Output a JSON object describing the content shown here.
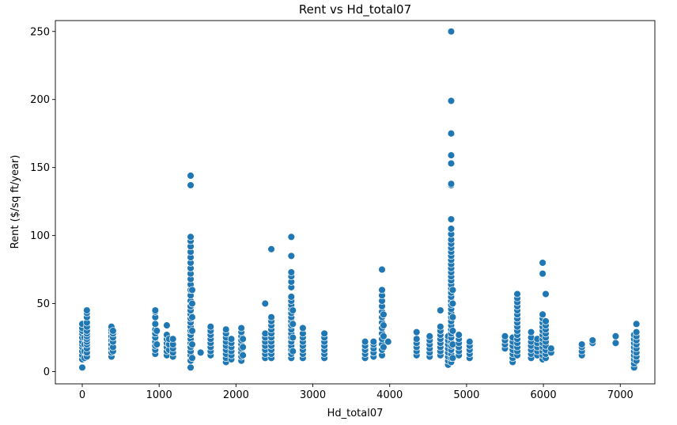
{
  "chart_data": {
    "type": "scatter",
    "title": "Rent vs Hd_total07",
    "xlabel": "Hd_total07",
    "ylabel": "Rent ($/sq ft/year)",
    "xlim": [
      -350,
      7450
    ],
    "ylim": [
      -9,
      258
    ],
    "xticks": [
      0,
      1000,
      2000,
      3000,
      4000,
      5000,
      6000,
      7000
    ],
    "yticks": [
      0,
      50,
      100,
      150,
      200,
      250
    ],
    "grid": false,
    "colors": {
      "marker": "#1f77b4",
      "marker_edge": "#ffffff"
    },
    "points": [
      [
        0,
        3
      ],
      [
        0,
        9
      ],
      [
        0,
        12
      ],
      [
        0,
        15
      ],
      [
        0,
        18
      ],
      [
        0,
        20
      ],
      [
        0,
        22
      ],
      [
        0,
        25
      ],
      [
        0,
        28
      ],
      [
        0,
        30
      ],
      [
        0,
        32
      ],
      [
        0,
        35
      ],
      [
        30,
        10
      ],
      [
        30,
        15
      ],
      [
        30,
        20
      ],
      [
        30,
        25
      ],
      [
        60,
        11
      ],
      [
        60,
        14
      ],
      [
        60,
        17
      ],
      [
        60,
        20
      ],
      [
        60,
        22
      ],
      [
        60,
        24
      ],
      [
        60,
        26
      ],
      [
        60,
        28
      ],
      [
        60,
        30
      ],
      [
        60,
        33
      ],
      [
        60,
        36
      ],
      [
        60,
        40
      ],
      [
        60,
        43
      ],
      [
        60,
        45
      ],
      [
        380,
        11
      ],
      [
        380,
        14
      ],
      [
        380,
        17
      ],
      [
        380,
        20
      ],
      [
        380,
        23
      ],
      [
        380,
        26
      ],
      [
        380,
        29
      ],
      [
        380,
        31
      ],
      [
        380,
        33
      ],
      [
        400,
        15
      ],
      [
        400,
        18
      ],
      [
        400,
        22
      ],
      [
        400,
        25
      ],
      [
        400,
        28
      ],
      [
        400,
        30
      ],
      [
        950,
        13
      ],
      [
        950,
        16
      ],
      [
        950,
        19
      ],
      [
        950,
        22
      ],
      [
        950,
        25
      ],
      [
        950,
        28
      ],
      [
        950,
        31
      ],
      [
        950,
        35
      ],
      [
        950,
        40
      ],
      [
        950,
        44
      ],
      [
        950,
        45
      ],
      [
        970,
        20
      ],
      [
        970,
        30
      ],
      [
        1100,
        12
      ],
      [
        1100,
        15
      ],
      [
        1100,
        18
      ],
      [
        1100,
        21
      ],
      [
        1100,
        24
      ],
      [
        1100,
        27
      ],
      [
        1100,
        34
      ],
      [
        1130,
        16
      ],
      [
        1130,
        20
      ],
      [
        1130,
        24
      ],
      [
        1180,
        11
      ],
      [
        1180,
        14
      ],
      [
        1180,
        17
      ],
      [
        1180,
        20
      ],
      [
        1180,
        24
      ],
      [
        1410,
        3
      ],
      [
        1410,
        8
      ],
      [
        1410,
        12
      ],
      [
        1410,
        15
      ],
      [
        1410,
        18
      ],
      [
        1410,
        21
      ],
      [
        1410,
        24
      ],
      [
        1410,
        27
      ],
      [
        1410,
        30
      ],
      [
        1410,
        33
      ],
      [
        1410,
        36
      ],
      [
        1410,
        39
      ],
      [
        1410,
        42
      ],
      [
        1410,
        45
      ],
      [
        1410,
        48
      ],
      [
        1410,
        52
      ],
      [
        1410,
        56
      ],
      [
        1410,
        60
      ],
      [
        1410,
        64
      ],
      [
        1410,
        68
      ],
      [
        1410,
        72
      ],
      [
        1410,
        76
      ],
      [
        1410,
        80
      ],
      [
        1410,
        84
      ],
      [
        1410,
        88
      ],
      [
        1410,
        92
      ],
      [
        1410,
        96
      ],
      [
        1410,
        99
      ],
      [
        1410,
        137
      ],
      [
        1410,
        144
      ],
      [
        1430,
        10
      ],
      [
        1430,
        20
      ],
      [
        1430,
        30
      ],
      [
        1430,
        40
      ],
      [
        1430,
        50
      ],
      [
        1430,
        60
      ],
      [
        1540,
        14
      ],
      [
        1670,
        12
      ],
      [
        1670,
        15
      ],
      [
        1670,
        18
      ],
      [
        1670,
        21
      ],
      [
        1670,
        24
      ],
      [
        1670,
        27
      ],
      [
        1670,
        30
      ],
      [
        1670,
        33
      ],
      [
        1870,
        7
      ],
      [
        1870,
        10
      ],
      [
        1870,
        13
      ],
      [
        1870,
        16
      ],
      [
        1870,
        19
      ],
      [
        1870,
        22
      ],
      [
        1870,
        25
      ],
      [
        1870,
        28
      ],
      [
        1870,
        31
      ],
      [
        1940,
        9
      ],
      [
        1940,
        12
      ],
      [
        1940,
        15
      ],
      [
        1940,
        18
      ],
      [
        1940,
        21
      ],
      [
        1940,
        24
      ],
      [
        2070,
        8
      ],
      [
        2070,
        11
      ],
      [
        2070,
        14
      ],
      [
        2070,
        17
      ],
      [
        2070,
        20
      ],
      [
        2070,
        23
      ],
      [
        2070,
        26
      ],
      [
        2070,
        29
      ],
      [
        2070,
        32
      ],
      [
        2090,
        12
      ],
      [
        2090,
        18
      ],
      [
        2090,
        24
      ],
      [
        2380,
        10
      ],
      [
        2380,
        13
      ],
      [
        2380,
        16
      ],
      [
        2380,
        19
      ],
      [
        2380,
        22
      ],
      [
        2380,
        25
      ],
      [
        2380,
        28
      ],
      [
        2380,
        50
      ],
      [
        2460,
        10
      ],
      [
        2460,
        13
      ],
      [
        2460,
        16
      ],
      [
        2460,
        19
      ],
      [
        2460,
        22
      ],
      [
        2460,
        25
      ],
      [
        2460,
        28
      ],
      [
        2460,
        31
      ],
      [
        2460,
        34
      ],
      [
        2460,
        37
      ],
      [
        2460,
        40
      ],
      [
        2460,
        90
      ],
      [
        2720,
        10
      ],
      [
        2720,
        13
      ],
      [
        2720,
        16
      ],
      [
        2720,
        19
      ],
      [
        2720,
        22
      ],
      [
        2720,
        25
      ],
      [
        2720,
        28
      ],
      [
        2720,
        31
      ],
      [
        2720,
        34
      ],
      [
        2720,
        37
      ],
      [
        2720,
        40
      ],
      [
        2720,
        43
      ],
      [
        2720,
        46
      ],
      [
        2720,
        49
      ],
      [
        2720,
        52
      ],
      [
        2720,
        55
      ],
      [
        2720,
        62
      ],
      [
        2720,
        66
      ],
      [
        2720,
        70
      ],
      [
        2720,
        73
      ],
      [
        2720,
        85
      ],
      [
        2720,
        99
      ],
      [
        2740,
        15
      ],
      [
        2740,
        25
      ],
      [
        2740,
        35
      ],
      [
        2740,
        45
      ],
      [
        2870,
        10
      ],
      [
        2870,
        13
      ],
      [
        2870,
        16
      ],
      [
        2870,
        19
      ],
      [
        2870,
        22
      ],
      [
        2870,
        25
      ],
      [
        2870,
        28
      ],
      [
        2870,
        32
      ],
      [
        3150,
        10
      ],
      [
        3150,
        13
      ],
      [
        3150,
        16
      ],
      [
        3150,
        19
      ],
      [
        3150,
        22
      ],
      [
        3150,
        25
      ],
      [
        3150,
        28
      ],
      [
        3680,
        10
      ],
      [
        3680,
        13
      ],
      [
        3680,
        16
      ],
      [
        3680,
        19
      ],
      [
        3680,
        22
      ],
      [
        3790,
        11
      ],
      [
        3790,
        14
      ],
      [
        3790,
        17
      ],
      [
        3790,
        20
      ],
      [
        3790,
        22
      ],
      [
        3900,
        12
      ],
      [
        3900,
        16
      ],
      [
        3900,
        20
      ],
      [
        3900,
        24
      ],
      [
        3900,
        28
      ],
      [
        3900,
        32
      ],
      [
        3900,
        36
      ],
      [
        3900,
        40
      ],
      [
        3900,
        44
      ],
      [
        3900,
        48
      ],
      [
        3900,
        52
      ],
      [
        3900,
        56
      ],
      [
        3900,
        60
      ],
      [
        3900,
        75
      ],
      [
        3920,
        18
      ],
      [
        3920,
        26
      ],
      [
        3920,
        34
      ],
      [
        3920,
        42
      ],
      [
        3980,
        22
      ],
      [
        4350,
        12
      ],
      [
        4350,
        15
      ],
      [
        4350,
        18
      ],
      [
        4350,
        21
      ],
      [
        4350,
        24
      ],
      [
        4350,
        29
      ],
      [
        4520,
        11
      ],
      [
        4520,
        14
      ],
      [
        4520,
        17
      ],
      [
        4520,
        20
      ],
      [
        4520,
        23
      ],
      [
        4520,
        26
      ],
      [
        4660,
        12
      ],
      [
        4660,
        15
      ],
      [
        4660,
        18
      ],
      [
        4660,
        21
      ],
      [
        4660,
        24
      ],
      [
        4660,
        27
      ],
      [
        4660,
        30
      ],
      [
        4660,
        33
      ],
      [
        4660,
        45
      ],
      [
        4760,
        5
      ],
      [
        4760,
        8
      ],
      [
        4760,
        11
      ],
      [
        4760,
        14
      ],
      [
        4760,
        17
      ],
      [
        4760,
        20
      ],
      [
        4760,
        23
      ],
      [
        4760,
        26
      ],
      [
        4800,
        7
      ],
      [
        4800,
        10
      ],
      [
        4800,
        13
      ],
      [
        4800,
        16
      ],
      [
        4800,
        19
      ],
      [
        4800,
        22
      ],
      [
        4800,
        25
      ],
      [
        4800,
        28
      ],
      [
        4800,
        31
      ],
      [
        4800,
        34
      ],
      [
        4800,
        37
      ],
      [
        4800,
        40
      ],
      [
        4800,
        43
      ],
      [
        4800,
        46
      ],
      [
        4800,
        49
      ],
      [
        4800,
        52
      ],
      [
        4800,
        55
      ],
      [
        4800,
        58
      ],
      [
        4800,
        61
      ],
      [
        4800,
        64
      ],
      [
        4800,
        67
      ],
      [
        4800,
        70
      ],
      [
        4800,
        73
      ],
      [
        4800,
        76
      ],
      [
        4800,
        79
      ],
      [
        4800,
        82
      ],
      [
        4800,
        85
      ],
      [
        4800,
        88
      ],
      [
        4800,
        91
      ],
      [
        4800,
        94
      ],
      [
        4800,
        97
      ],
      [
        4800,
        101
      ],
      [
        4800,
        105
      ],
      [
        4800,
        112
      ],
      [
        4800,
        137
      ],
      [
        4800,
        138
      ],
      [
        4800,
        153
      ],
      [
        4800,
        159
      ],
      [
        4800,
        175
      ],
      [
        4800,
        199
      ],
      [
        4800,
        250
      ],
      [
        4820,
        10
      ],
      [
        4820,
        20
      ],
      [
        4820,
        30
      ],
      [
        4820,
        40
      ],
      [
        4820,
        50
      ],
      [
        4820,
        60
      ],
      [
        4900,
        12
      ],
      [
        4900,
        15
      ],
      [
        4900,
        18
      ],
      [
        4900,
        21
      ],
      [
        4900,
        24
      ],
      [
        4900,
        27
      ],
      [
        5040,
        10
      ],
      [
        5040,
        13
      ],
      [
        5040,
        16
      ],
      [
        5040,
        19
      ],
      [
        5040,
        22
      ],
      [
        5500,
        17
      ],
      [
        5500,
        20
      ],
      [
        5500,
        23
      ],
      [
        5500,
        26
      ],
      [
        5600,
        7
      ],
      [
        5600,
        10
      ],
      [
        5600,
        13
      ],
      [
        5600,
        16
      ],
      [
        5600,
        19
      ],
      [
        5600,
        22
      ],
      [
        5600,
        25
      ],
      [
        5660,
        12
      ],
      [
        5660,
        15
      ],
      [
        5660,
        18
      ],
      [
        5660,
        21
      ],
      [
        5660,
        24
      ],
      [
        5660,
        27
      ],
      [
        5660,
        30
      ],
      [
        5660,
        33
      ],
      [
        5660,
        36
      ],
      [
        5660,
        39
      ],
      [
        5660,
        42
      ],
      [
        5660,
        45
      ],
      [
        5660,
        48
      ],
      [
        5660,
        51
      ],
      [
        5660,
        54
      ],
      [
        5660,
        57
      ],
      [
        5840,
        10
      ],
      [
        5840,
        13
      ],
      [
        5840,
        16
      ],
      [
        5840,
        19
      ],
      [
        5840,
        22
      ],
      [
        5840,
        25
      ],
      [
        5840,
        29
      ],
      [
        5920,
        12
      ],
      [
        5920,
        15
      ],
      [
        5920,
        18
      ],
      [
        5920,
        21
      ],
      [
        5920,
        24
      ],
      [
        5990,
        9
      ],
      [
        5990,
        12
      ],
      [
        5990,
        15
      ],
      [
        5990,
        18
      ],
      [
        5990,
        21
      ],
      [
        5990,
        24
      ],
      [
        5990,
        27
      ],
      [
        5990,
        30
      ],
      [
        5990,
        33
      ],
      [
        5990,
        36
      ],
      [
        5990,
        39
      ],
      [
        5990,
        42
      ],
      [
        5990,
        72
      ],
      [
        5990,
        80
      ],
      [
        6030,
        10
      ],
      [
        6030,
        13
      ],
      [
        6030,
        16
      ],
      [
        6030,
        19
      ],
      [
        6030,
        22
      ],
      [
        6030,
        25
      ],
      [
        6030,
        28
      ],
      [
        6030,
        31
      ],
      [
        6030,
        34
      ],
      [
        6030,
        37
      ],
      [
        6030,
        57
      ],
      [
        6100,
        14
      ],
      [
        6100,
        17
      ],
      [
        6500,
        12
      ],
      [
        6500,
        15
      ],
      [
        6500,
        18
      ],
      [
        6500,
        20
      ],
      [
        6640,
        21
      ],
      [
        6640,
        23
      ],
      [
        6940,
        21
      ],
      [
        6940,
        26
      ],
      [
        7180,
        3
      ],
      [
        7180,
        6
      ],
      [
        7180,
        9
      ],
      [
        7180,
        12
      ],
      [
        7180,
        15
      ],
      [
        7180,
        18
      ],
      [
        7180,
        21
      ],
      [
        7180,
        24
      ],
      [
        7180,
        27
      ],
      [
        7210,
        8
      ],
      [
        7210,
        11
      ],
      [
        7210,
        14
      ],
      [
        7210,
        17
      ],
      [
        7210,
        20
      ],
      [
        7210,
        23
      ],
      [
        7210,
        26
      ],
      [
        7210,
        29
      ],
      [
        7210,
        35
      ]
    ]
  }
}
